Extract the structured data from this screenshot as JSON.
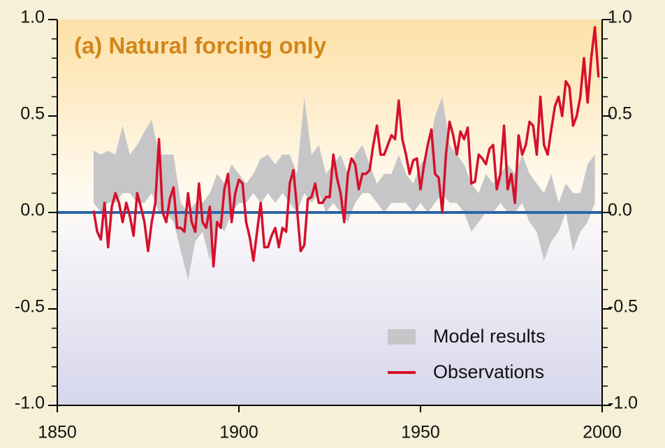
{
  "chart_data": {
    "type": "line",
    "title": "(a) Natural forcing only",
    "xlim": [
      1850,
      2000
    ],
    "xticks": [
      1850,
      1900,
      1950,
      2000
    ],
    "ylim": [
      -1,
      1
    ],
    "yticks": [
      {
        "value": -1,
        "label": "-1.0"
      },
      {
        "value": -0.5,
        "label": "-0.5"
      },
      {
        "value": 0,
        "label": "0.0"
      },
      {
        "value": 0.5,
        "label": "0.5"
      },
      {
        "value": 1,
        "label": "1.0"
      }
    ],
    "yminorticks": [
      -0.9,
      -0.8,
      -0.7,
      -0.6,
      -0.4,
      -0.3,
      -0.2,
      -0.1,
      0.1,
      0.2,
      0.3,
      0.4,
      0.6,
      0.7,
      0.8,
      0.9
    ],
    "hline": {
      "value": 0,
      "color": "#2a64a6"
    },
    "legend": "lower right",
    "series": [
      {
        "name": "Model results",
        "kind": "band",
        "color": "#c6c6c8",
        "x": [
          1860,
          1862,
          1864,
          1866,
          1868,
          1870,
          1872,
          1874,
          1876,
          1878,
          1880,
          1882,
          1884,
          1886,
          1888,
          1890,
          1892,
          1894,
          1896,
          1898,
          1900,
          1902,
          1904,
          1906,
          1908,
          1910,
          1912,
          1914,
          1916,
          1918,
          1920,
          1922,
          1924,
          1926,
          1928,
          1930,
          1932,
          1934,
          1936,
          1938,
          1940,
          1942,
          1944,
          1946,
          1948,
          1950,
          1952,
          1954,
          1956,
          1958,
          1960,
          1962,
          1964,
          1966,
          1968,
          1970,
          1972,
          1974,
          1976,
          1978,
          1980,
          1982,
          1984,
          1986,
          1988,
          1990,
          1992,
          1994,
          1996,
          1998
        ],
        "lower": [
          0.05,
          0,
          0.05,
          0.05,
          0.1,
          0.1,
          0.05,
          0.05,
          0.1,
          0,
          0,
          -0.05,
          -0.2,
          -0.35,
          -0.15,
          -0.1,
          -0.25,
          -0.05,
          -0.1,
          0,
          0.05,
          0.05,
          0.1,
          0.05,
          0.1,
          0.05,
          0.1,
          0.05,
          0,
          0.1,
          0.05,
          0.1,
          0,
          0.05,
          0,
          -0.05,
          0.05,
          0.1,
          0.1,
          0.05,
          0,
          0.05,
          0.05,
          0.05,
          0,
          0.05,
          0,
          0.05,
          0.1,
          0.05,
          0.05,
          0,
          -0.1,
          -0.05,
          0,
          0,
          0.05,
          0,
          0,
          0.05,
          -0.05,
          -0.1,
          -0.25,
          -0.15,
          -0.1,
          0,
          -0.2,
          -0.1,
          -0.05,
          0.05
        ],
        "upper": [
          0.32,
          0.3,
          0.32,
          0.3,
          0.45,
          0.3,
          0.35,
          0.42,
          0.48,
          0.3,
          0.3,
          0.3,
          0.05,
          0,
          0.05,
          0.05,
          0.1,
          0.2,
          0.15,
          0.25,
          0.2,
          0.15,
          0.2,
          0.28,
          0.3,
          0.25,
          0.3,
          0.3,
          0.2,
          0.6,
          0.3,
          0.35,
          0.2,
          0.25,
          0.3,
          0.2,
          0.3,
          0.35,
          0.25,
          0.15,
          0.2,
          0.2,
          0.3,
          0.2,
          0.15,
          0.25,
          0.3,
          0.5,
          0.6,
          0.35,
          0.3,
          0.25,
          0.15,
          0.1,
          0.2,
          0.15,
          0.2,
          0.25,
          0.2,
          0.3,
          0.2,
          0.15,
          0.1,
          0.2,
          0.05,
          0.15,
          0.1,
          0.1,
          0.25,
          0.3
        ]
      },
      {
        "name": "Observations",
        "kind": "line",
        "color": "#d6102c",
        "x": [
          1860,
          1861,
          1862,
          1863,
          1864,
          1865,
          1866,
          1867,
          1868,
          1869,
          1870,
          1871,
          1872,
          1873,
          1874,
          1875,
          1876,
          1877,
          1878,
          1879,
          1880,
          1881,
          1882,
          1883,
          1884,
          1885,
          1886,
          1887,
          1888,
          1889,
          1890,
          1891,
          1892,
          1893,
          1894,
          1895,
          1896,
          1897,
          1898,
          1899,
          1900,
          1901,
          1902,
          1903,
          1904,
          1905,
          1906,
          1907,
          1908,
          1909,
          1910,
          1911,
          1912,
          1913,
          1914,
          1915,
          1916,
          1917,
          1918,
          1919,
          1920,
          1921,
          1922,
          1923,
          1924,
          1925,
          1926,
          1927,
          1928,
          1929,
          1930,
          1931,
          1932,
          1933,
          1934,
          1935,
          1936,
          1937,
          1938,
          1939,
          1940,
          1941,
          1942,
          1943,
          1944,
          1945,
          1946,
          1947,
          1948,
          1949,
          1950,
          1951,
          1952,
          1953,
          1954,
          1955,
          1956,
          1957,
          1958,
          1959,
          1960,
          1961,
          1962,
          1963,
          1964,
          1965,
          1966,
          1967,
          1968,
          1969,
          1970,
          1971,
          1972,
          1973,
          1974,
          1975,
          1976,
          1977,
          1978,
          1979,
          1980,
          1981,
          1982,
          1983,
          1984,
          1985,
          1986,
          1987,
          1988,
          1989,
          1990,
          1991,
          1992,
          1993,
          1994,
          1995,
          1996,
          1997,
          1998,
          1999
        ],
        "values": [
          0.01,
          -0.1,
          -0.14,
          0.05,
          -0.18,
          0.03,
          0.1,
          0.05,
          -0.05,
          0.05,
          -0.02,
          -0.12,
          0.1,
          0.03,
          -0.05,
          -0.2,
          -0.05,
          0.05,
          0.38,
          0,
          -0.05,
          0.07,
          0.13,
          -0.08,
          -0.08,
          -0.1,
          0.1,
          -0.05,
          -0.1,
          0.15,
          -0.05,
          -0.08,
          0.03,
          -0.28,
          -0.05,
          -0.08,
          0.12,
          0.2,
          -0.05,
          0.1,
          0.17,
          0.15,
          -0.05,
          -0.13,
          -0.25,
          -0.1,
          0.05,
          -0.18,
          -0.18,
          -0.12,
          -0.08,
          -0.18,
          -0.08,
          -0.1,
          0.15,
          0.22,
          0.02,
          -0.2,
          -0.17,
          0.07,
          0.08,
          0.15,
          0.05,
          0.05,
          0.08,
          0.08,
          0.3,
          0.18,
          0.1,
          -0.05,
          0.2,
          0.28,
          0.25,
          0.12,
          0.2,
          0.2,
          0.22,
          0.35,
          0.45,
          0.3,
          0.3,
          0.35,
          0.4,
          0.38,
          0.58,
          0.38,
          0.3,
          0.2,
          0.27,
          0.28,
          0.12,
          0.25,
          0.35,
          0.43,
          0.2,
          0.18,
          0,
          0.3,
          0.47,
          0.4,
          0.3,
          0.42,
          0.38,
          0.44,
          0.15,
          0.16,
          0.3,
          0.28,
          0.25,
          0.33,
          0.35,
          0.12,
          0.2,
          0.45,
          0.12,
          0.2,
          0.05,
          0.4,
          0.3,
          0.35,
          0.47,
          0.45,
          0.3,
          0.6,
          0.35,
          0.3,
          0.43,
          0.55,
          0.6,
          0.5,
          0.68,
          0.65,
          0.45,
          0.5,
          0.6,
          0.8,
          0.57,
          0.8,
          0.96,
          0.7
        ]
      }
    ]
  }
}
